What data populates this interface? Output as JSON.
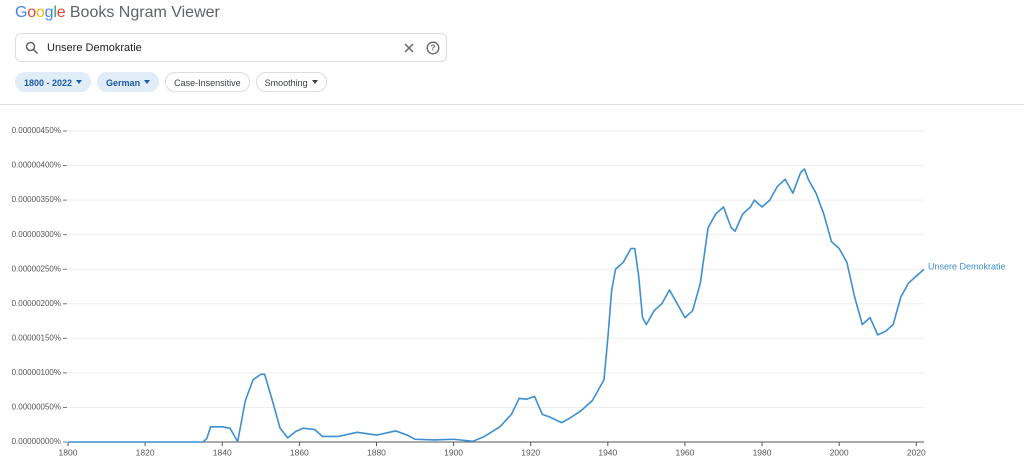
{
  "header": {
    "logo": "Google",
    "title": "Books Ngram Viewer"
  },
  "search": {
    "query": "Unsere Demokratie"
  },
  "filters": [
    "1800 - 2022",
    "German",
    "Case-Insensitive",
    "Smoothing"
  ],
  "chart_data": {
    "type": "line",
    "x": [
      1800,
      1835,
      1836,
      1837,
      1840,
      1842,
      1844,
      1846,
      1848,
      1850,
      1851,
      1853,
      1855,
      1857,
      1859,
      1861,
      1864,
      1866,
      1870,
      1875,
      1880,
      1885,
      1888,
      1890,
      1895,
      1900,
      1905,
      1908,
      1912,
      1915,
      1917,
      1919,
      1921,
      1923,
      1925,
      1928,
      1930,
      1933,
      1936,
      1938,
      1939,
      1940,
      1941,
      1942,
      1944,
      1946,
      1947,
      1948,
      1949,
      1950,
      1952,
      1954,
      1956,
      1958,
      1960,
      1962,
      1964,
      1966,
      1968,
      1970,
      1972,
      1973,
      1975,
      1977,
      1978,
      1980,
      1982,
      1984,
      1986,
      1988,
      1990,
      1991,
      1992,
      1994,
      1996,
      1998,
      2000,
      2002,
      2004,
      2006,
      2008,
      2010,
      2012,
      2014,
      2016,
      2018,
      2020,
      2022
    ],
    "series": [
      {
        "name": "Unsere Demokratie",
        "color": "#3d8fd1",
        "values": [
          0,
          0,
          5e-08,
          2.2e-07,
          2.2e-07,
          2e-07,
          5e-09,
          6e-07,
          9e-07,
          9.8e-07,
          9.8e-07,
          6e-07,
          2e-07,
          6e-08,
          1.5e-07,
          2e-07,
          1.8e-07,
          8e-08,
          8e-08,
          1.4e-07,
          1e-07,
          1.6e-07,
          1e-07,
          4e-08,
          3e-08,
          4e-08,
          1e-08,
          8e-08,
          2.2e-07,
          4e-07,
          6.3e-07,
          6.2e-07,
          6.6e-07,
          4e-07,
          3.6e-07,
          2.8e-07,
          3.4e-07,
          4.5e-07,
          6e-07,
          8e-07,
          9e-07,
          1.5e-06,
          2.2e-06,
          2.5e-06,
          2.6e-06,
          2.8e-06,
          2.8e-06,
          2.4e-06,
          1.8e-06,
          1.7e-06,
          1.9e-06,
          2e-06,
          2.2e-06,
          2e-06,
          1.8e-06,
          1.9e-06,
          2.3e-06,
          3.1e-06,
          3.3e-06,
          3.4e-06,
          3.1e-06,
          3.05e-06,
          3.3e-06,
          3.4e-06,
          3.5e-06,
          3.4e-06,
          3.5e-06,
          3.7e-06,
          3.8e-06,
          3.6e-06,
          3.9e-06,
          3.95e-06,
          3.8e-06,
          3.6e-06,
          3.3e-06,
          2.9e-06,
          2.8e-06,
          2.6e-06,
          2.1e-06,
          1.7e-06,
          1.8e-06,
          1.55e-06,
          1.6e-06,
          1.7e-06,
          2.1e-06,
          2.3e-06,
          2.4e-06,
          2.5e-06
        ]
      }
    ],
    "xlim": [
      1800,
      2022
    ],
    "xticks": [
      1800,
      1820,
      1840,
      1860,
      1880,
      1900,
      1920,
      1940,
      1960,
      1980,
      2000,
      2020
    ],
    "ylim": [
      0,
      4.5e-06
    ],
    "yticks": [
      {
        "value": 0,
        "label": "0.00000000%"
      },
      {
        "value": 5e-07,
        "label": "0.00000050%"
      },
      {
        "value": 1e-06,
        "label": "0.00000100%"
      },
      {
        "value": 1.5e-06,
        "label": "0.00000150%"
      },
      {
        "value": 2e-06,
        "label": "0.00000200%"
      },
      {
        "value": 2.5e-06,
        "label": "0.00000250%"
      },
      {
        "value": 3e-06,
        "label": "0.00000300%"
      },
      {
        "value": 3.5e-06,
        "label": "0.00000350%"
      },
      {
        "value": 4e-06,
        "label": "0.00000400%"
      },
      {
        "value": 4.5e-06,
        "label": "0.00000450%"
      }
    ],
    "grid": true
  }
}
